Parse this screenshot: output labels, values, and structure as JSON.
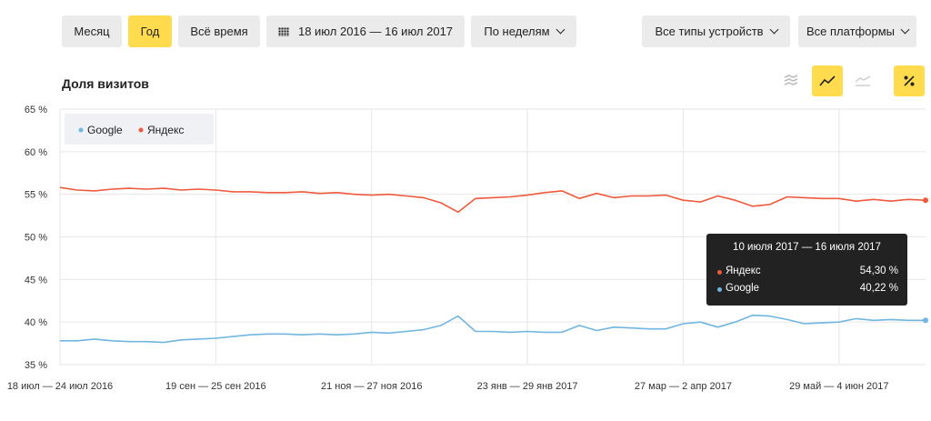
{
  "toolbar": {
    "month": "Месяц",
    "year": "Год",
    "all_time": "Всё время",
    "date_range": "18 июл 2016 — 16 июл 2017",
    "grouping": "По неделям",
    "devices": "Все типы устройств",
    "platforms": "Все платформы"
  },
  "colors": {
    "accent": "#ffdb4d",
    "yandex": "#f05a3c",
    "google": "#70b6e0"
  },
  "chart_data": {
    "type": "line",
    "title": "Доля визитов",
    "ylim": [
      35,
      65
    ],
    "yticks": [
      "35 %",
      "40 %",
      "45 %",
      "50 %",
      "55 %",
      "60 %",
      "65 %"
    ],
    "xtick_labels": [
      "18 июл — 24 июл 2016",
      "19 сен — 25 сен 2016",
      "21 ноя — 27 ноя 2016",
      "23 янв — 29 янв 2017",
      "27 мар — 2 апр 2017",
      "29 май — 4 июн 2017"
    ],
    "xtick_indices": [
      0,
      9,
      18,
      27,
      36,
      45
    ],
    "legend": [
      "Google",
      "Яндекс"
    ],
    "series": [
      {
        "name": "Яндекс",
        "color": "#f05a3c",
        "values": [
          55.8,
          55.5,
          55.4,
          55.6,
          55.7,
          55.6,
          55.7,
          55.5,
          55.6,
          55.5,
          55.3,
          55.3,
          55.2,
          55.2,
          55.3,
          55.1,
          55.2,
          55.0,
          54.9,
          55.0,
          54.8,
          54.6,
          54.0,
          52.9,
          54.5,
          54.6,
          54.7,
          54.9,
          55.2,
          55.4,
          54.5,
          55.1,
          54.6,
          54.8,
          54.8,
          54.9,
          54.3,
          54.1,
          54.8,
          54.3,
          53.6,
          53.8,
          54.7,
          54.6,
          54.5,
          54.5,
          54.2,
          54.4,
          54.2,
          54.4,
          54.3
        ]
      },
      {
        "name": "Google",
        "color": "#70b6e0",
        "values": [
          37.8,
          37.8,
          38.0,
          37.8,
          37.7,
          37.7,
          37.6,
          37.9,
          38.0,
          38.1,
          38.3,
          38.5,
          38.6,
          38.6,
          38.5,
          38.6,
          38.5,
          38.6,
          38.8,
          38.7,
          38.9,
          39.1,
          39.6,
          40.7,
          38.9,
          38.9,
          38.8,
          38.9,
          38.8,
          38.8,
          39.6,
          39.0,
          39.4,
          39.3,
          39.2,
          39.2,
          39.8,
          40.0,
          39.4,
          40.0,
          40.8,
          40.7,
          40.3,
          39.8,
          39.9,
          40.0,
          40.4,
          40.2,
          40.3,
          40.2,
          40.2
        ]
      }
    ]
  },
  "tooltip": {
    "title": "10 июля 2017 — 16 июля 2017",
    "rows": [
      {
        "name": "Яндекс",
        "value": "54,30 %"
      },
      {
        "name": "Google",
        "value": "40,22 %"
      }
    ]
  }
}
